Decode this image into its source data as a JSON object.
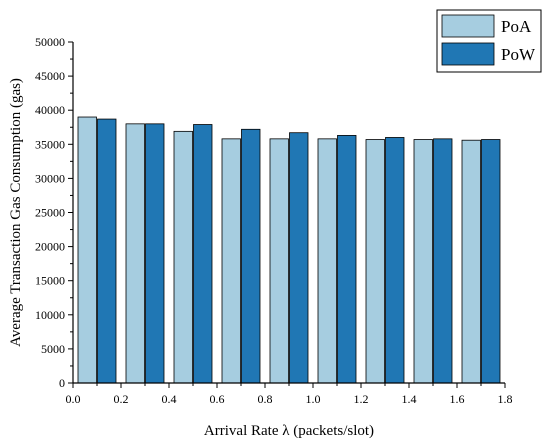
{
  "chart_data": {
    "type": "bar",
    "title": "",
    "xlabel": "Arrival Rate λ (packets/slot)",
    "ylabel": "Average Transaction Gas Consumption (gas)",
    "x_ticks": [
      "0.0",
      "0.2",
      "0.4",
      "0.6",
      "0.8",
      "1.0",
      "1.2",
      "1.4",
      "1.6",
      "1.8"
    ],
    "y_ticks": [
      "0",
      "5000",
      "10000",
      "15000",
      "20000",
      "25000",
      "30000",
      "35000",
      "40000",
      "45000",
      "50000"
    ],
    "xlim": [
      0.0,
      1.8
    ],
    "ylim": [
      0,
      50000
    ],
    "x": [
      0.1,
      0.3,
      0.5,
      0.7,
      0.9,
      1.1,
      1.3,
      1.5,
      1.7
    ],
    "series": [
      {
        "name": "PoA",
        "color": "#a6cde0",
        "values": [
          39000,
          38000,
          36900,
          35800,
          35800,
          35800,
          35700,
          35700,
          35600
        ]
      },
      {
        "name": "PoW",
        "color": "#2077b4",
        "values": [
          38700,
          38000,
          37900,
          37200,
          36700,
          36300,
          36000,
          35800,
          35700
        ]
      }
    ],
    "legend_position": "top-right",
    "grid": false
  }
}
